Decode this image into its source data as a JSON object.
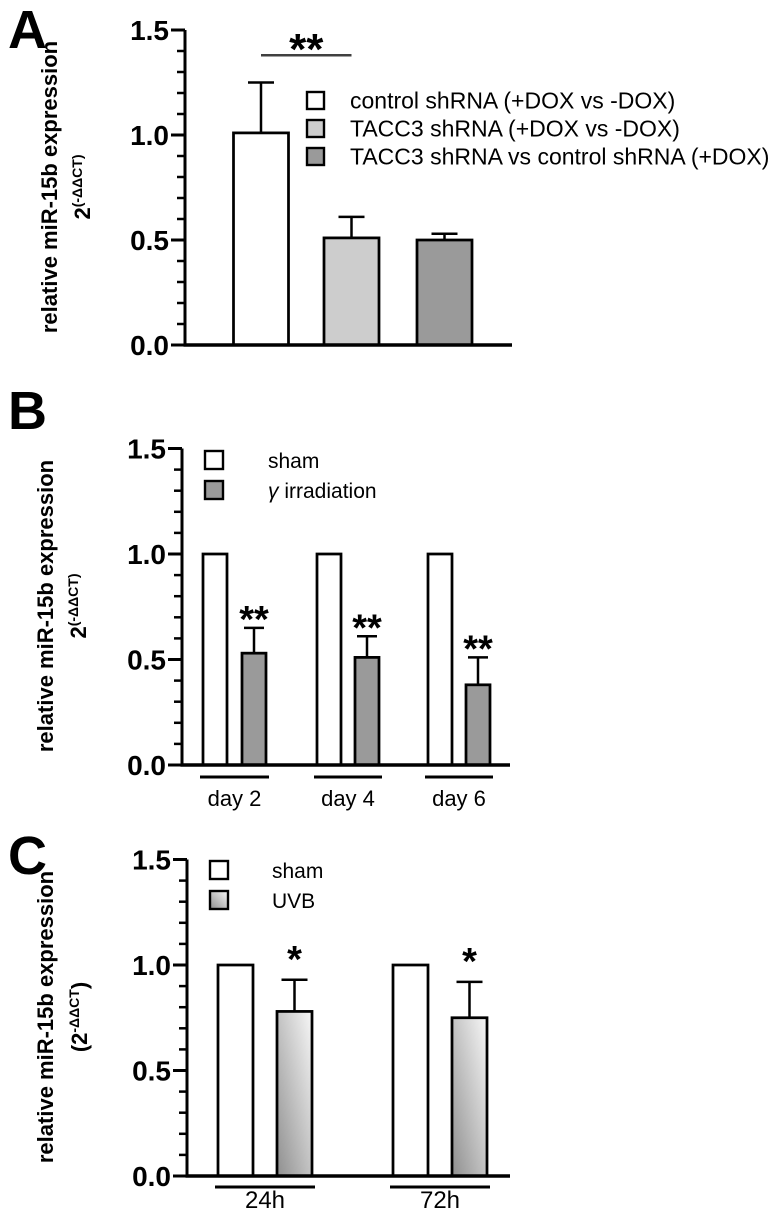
{
  "figure": {
    "background": "#ffffff",
    "palette": {
      "white": "#ffffff",
      "light_gray": "#cdcdcd",
      "mid_gray": "#9a9a9a",
      "gradient_dark": "#8f8f8f",
      "gradient_light": "#f7f7f7",
      "axis": "#000000",
      "sig_line": "#404040"
    }
  },
  "chart_data": [
    {
      "panel": "A",
      "type": "bar",
      "ylabel": "relative miR-15b expression",
      "ylabel_sub": {
        "pre": "",
        "base": "2",
        "sup": "(-ΔΔCT)",
        "post": ""
      },
      "ylim": [
        0,
        1.5
      ],
      "minor_tick_step": 0.1,
      "grid": false,
      "yticks": [
        {
          "v": 0.0,
          "label": "0.0"
        },
        {
          "v": 0.5,
          "label": "0.5"
        },
        {
          "v": 1.0,
          "label": "1.0"
        },
        {
          "v": 1.5,
          "label": "1.5"
        }
      ],
      "legend_position": "inside-right",
      "legend": [
        {
          "label": "control shRNA (+DOX vs -DOX)",
          "fill": "white"
        },
        {
          "label": "TACC3 shRNA (+DOX vs -DOX)",
          "fill": "light_gray"
        },
        {
          "label": "TACC3 shRNA vs control shRNA (+DOX)",
          "fill": "mid_gray"
        }
      ],
      "categories": [
        ""
      ],
      "series": [
        {
          "name": "control shRNA (+DOX vs -DOX)",
          "fill": "white",
          "values": [
            1.01
          ],
          "errors": [
            0.24
          ]
        },
        {
          "name": "TACC3 shRNA (+DOX vs -DOX)",
          "fill": "light_gray",
          "values": [
            0.51
          ],
          "errors": [
            0.1
          ]
        },
        {
          "name": "TACC3 shRNA vs control shRNA (+DOX)",
          "fill": "mid_gray",
          "values": [
            0.5
          ],
          "errors": [
            0.03
          ]
        }
      ],
      "significance_bracket": {
        "from": [
          0,
          0
        ],
        "to": [
          1,
          0
        ],
        "y": 1.38,
        "label": "**"
      }
    },
    {
      "panel": "B",
      "type": "grouped-bar",
      "ylabel": "relative miR-15b expression",
      "ylabel_sub": {
        "pre": "",
        "base": "2",
        "sup": "(-ΔΔCT)",
        "post": ""
      },
      "ylim": [
        0,
        1.5
      ],
      "minor_tick_step": 0.1,
      "grid": false,
      "yticks": [
        {
          "v": 0.0,
          "label": "0.0"
        },
        {
          "v": 0.5,
          "label": "0.5"
        },
        {
          "v": 1.0,
          "label": "1.0"
        },
        {
          "v": 1.5,
          "label": "1.5"
        }
      ],
      "legend_position": "inside-top-left",
      "legend": [
        {
          "label": "sham",
          "fill": "white"
        },
        {
          "label": "γ irradiation",
          "fill": "mid_gray"
        }
      ],
      "categories": [
        "day 2",
        "day 4",
        "day 6"
      ],
      "series": [
        {
          "name": "sham",
          "fill": "white",
          "values": [
            1.0,
            1.0,
            1.0
          ],
          "errors": [
            0,
            0,
            0
          ]
        },
        {
          "name": "γ irradiation",
          "fill": "mid_gray",
          "values": [
            0.53,
            0.51,
            0.38
          ],
          "errors": [
            0.12,
            0.1,
            0.13
          ],
          "sig": [
            "**",
            "**",
            "**"
          ]
        }
      ]
    },
    {
      "panel": "C",
      "type": "grouped-bar",
      "ylabel": "relative miR-15b expression",
      "ylabel_sub": {
        "pre": "(",
        "base": "2",
        "sup": "-ΔΔCT",
        "post": ")"
      },
      "ylim": [
        0,
        1.5
      ],
      "minor_tick_step": 0.1,
      "grid": false,
      "yticks": [
        {
          "v": 0.0,
          "label": "0.0"
        },
        {
          "v": 0.5,
          "label": "0.5"
        },
        {
          "v": 1.0,
          "label": "1.0"
        },
        {
          "v": 1.5,
          "label": "1.5"
        }
      ],
      "legend_position": "inside-top-left",
      "legend": [
        {
          "label": "sham",
          "fill": "white"
        },
        {
          "label": "UVB",
          "fill": "gradient"
        }
      ],
      "categories": [
        "24h",
        "72h"
      ],
      "series": [
        {
          "name": "sham",
          "fill": "white",
          "values": [
            1.0,
            1.0
          ],
          "errors": [
            0,
            0
          ]
        },
        {
          "name": "UVB",
          "fill": "gradient",
          "values": [
            0.78,
            0.75
          ],
          "errors": [
            0.15,
            0.17
          ],
          "sig": [
            "*",
            "*"
          ]
        }
      ]
    }
  ]
}
